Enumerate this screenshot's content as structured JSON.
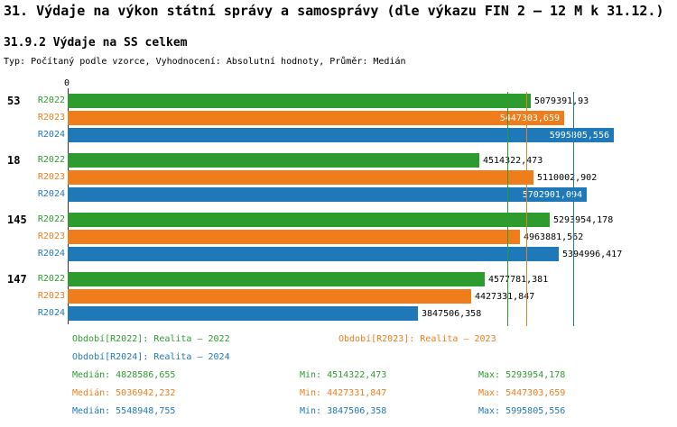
{
  "title": "31. Výdaje na výkon státní správy a samosprávy (dle výkazu FIN 2 – 12 M k 31.12.)",
  "subtitle": "31.9.2 Výdaje na SS celkem",
  "type_line": "Typ: Počítaný podle vzorce, Vyhodnocení: Absolutní hodnoty, Průměr: Medián",
  "colors": {
    "r2022": "#2E9B2E",
    "r2023": "#EF7D1C",
    "r2024": "#1F78B8"
  },
  "axis": {
    "zero_label": "0"
  },
  "chart_data": {
    "type": "bar",
    "orientation": "horizontal",
    "xlim": [
      0,
      5995805.556
    ],
    "grid": false,
    "legend_position": "bottom",
    "categories": [
      "53",
      "18",
      "145",
      "147"
    ],
    "series": [
      {
        "name": "R2022",
        "color_key": "r2022",
        "values": [
          5079391.93,
          4514322.473,
          5293954.178,
          4577781.381
        ],
        "labels": [
          "5079391,93",
          "4514322,473",
          "5293954,178",
          "4577781,381"
        ]
      },
      {
        "name": "R2023",
        "color_key": "r2023",
        "values": [
          5447303.659,
          5110002.902,
          4963881.562,
          4427331.847
        ],
        "labels": [
          "5447303,659",
          "5110002,902",
          "4963881,562",
          "4427331,847"
        ]
      },
      {
        "name": "R2024",
        "color_key": "r2024",
        "values": [
          5995805.556,
          5702901.094,
          5394996.417,
          3847506.358
        ],
        "labels": [
          "5995805,556",
          "5702901,094",
          "5394996,417",
          "3847506,358"
        ]
      }
    ],
    "median_lines": [
      {
        "series": "R2022",
        "color_key": "r2022",
        "value": 4828586.655
      },
      {
        "series": "R2023",
        "color_key": "r2023",
        "value": 5036942.232
      },
      {
        "series": "R2024",
        "color_key": "r2024",
        "value": 5548948.755
      }
    ]
  },
  "legend": {
    "items": [
      {
        "label": "Období[R2022]: Realita – 2022",
        "color_key": "r2022"
      },
      {
        "label": "Období[R2023]: Realita – 2023",
        "color_key": "r2023"
      },
      {
        "label": "Období[R2024]: Realita – 2024",
        "color_key": "r2024"
      }
    ]
  },
  "stats": [
    {
      "color_key": "r2022",
      "median": "Medián: 4828586,655",
      "min": "Min: 4514322,473",
      "max": "Max: 5293954,178"
    },
    {
      "color_key": "r2023",
      "median": "Medián: 5036942,232",
      "min": "Min: 4427331,847",
      "max": "Max: 5447303,659"
    },
    {
      "color_key": "r2024",
      "median": "Medián: 5548948,755",
      "min": "Min: 3847506,358",
      "max": "Max: 5995805,556"
    }
  ]
}
